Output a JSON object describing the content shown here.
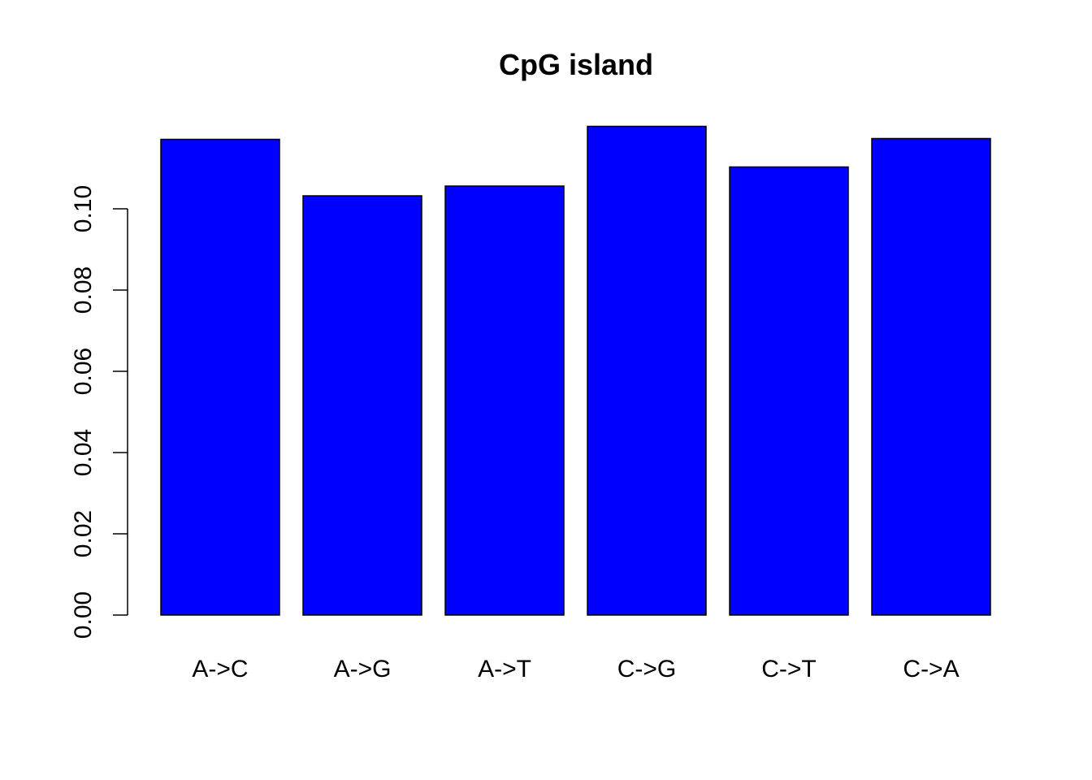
{
  "chart_data": {
    "type": "bar",
    "title": "CpG island",
    "xlabel": "",
    "ylabel": "",
    "categories": [
      "A->C",
      "A->G",
      "A->T",
      "C->G",
      "C->T",
      "C->A"
    ],
    "values": [
      0.1171,
      0.1032,
      0.1056,
      0.1203,
      0.1103,
      0.1173
    ],
    "ylim": [
      0,
      0.12
    ],
    "yticks": [
      0.0,
      0.02,
      0.04,
      0.06,
      0.08,
      0.1
    ],
    "ytick_labels": [
      "0.00",
      "0.02",
      "0.04",
      "0.06",
      "0.08",
      "0.10"
    ],
    "bar_color": "#0000ff",
    "grid": false,
    "legend": "none"
  }
}
